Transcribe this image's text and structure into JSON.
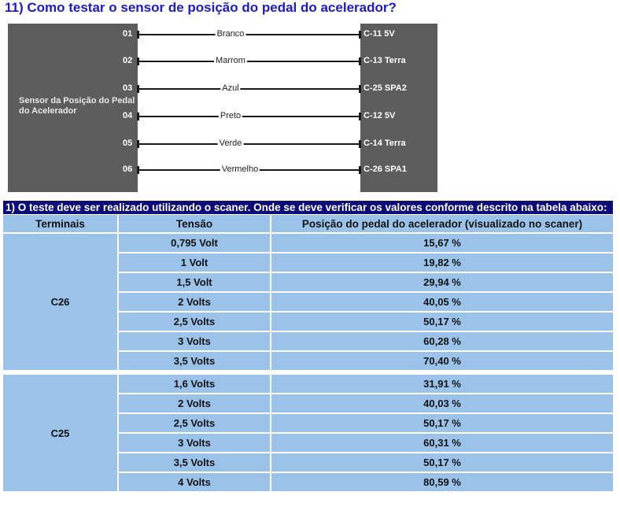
{
  "title": "11) Como testar o sensor de posição do pedal do acelerador?",
  "diagram": {
    "sensor_label": "Sensor da Posição do Pedal do Acelerador",
    "wires": [
      {
        "pin": "01",
        "color": "Branco",
        "ecu": "C-11 5V"
      },
      {
        "pin": "02",
        "color": "Marrom",
        "ecu": "C-13 Terra"
      },
      {
        "pin": "03",
        "color": "Azul",
        "ecu": "C-25 SPA2"
      },
      {
        "pin": "04",
        "color": "Preto",
        "ecu": "C-12 5V"
      },
      {
        "pin": "05",
        "color": "Verde",
        "ecu": "C-14 Terra"
      },
      {
        "pin": "06",
        "color": "Vermelho",
        "ecu": "C-26 SPA1"
      }
    ]
  },
  "table": {
    "caption": "1) O teste deve ser realizado utilizando o scaner. Onde se deve verificar os valores conforme descrito na tabela abaixo:",
    "headers": [
      "Terminais",
      "Tensão",
      "Posição do pedal do acelerador (visualizado no scaner)"
    ],
    "groups": [
      {
        "terminal": "C26",
        "rows": [
          [
            "0,795 Volt",
            "15,67 %"
          ],
          [
            "1 Volt",
            "19,82 %"
          ],
          [
            "1,5 Volt",
            "29,94 %"
          ],
          [
            "2 Volts",
            "40,05 %"
          ],
          [
            "2,5 Volts",
            "50,17 %"
          ],
          [
            "3 Volts",
            "60,28 %"
          ],
          [
            "3,5 Volts",
            "70,40 %"
          ]
        ]
      },
      {
        "terminal": "C25",
        "rows": [
          [
            "1,6 Volts",
            "31,91 %"
          ],
          [
            "2 Volts",
            "40,03 %"
          ],
          [
            "2,5 Volts",
            "50,17 %"
          ],
          [
            "3 Volts",
            "60,31 %"
          ],
          [
            "3,5 Volts",
            "50,17 %"
          ],
          [
            "4 Volts",
            "80,59 %"
          ]
        ]
      }
    ]
  }
}
